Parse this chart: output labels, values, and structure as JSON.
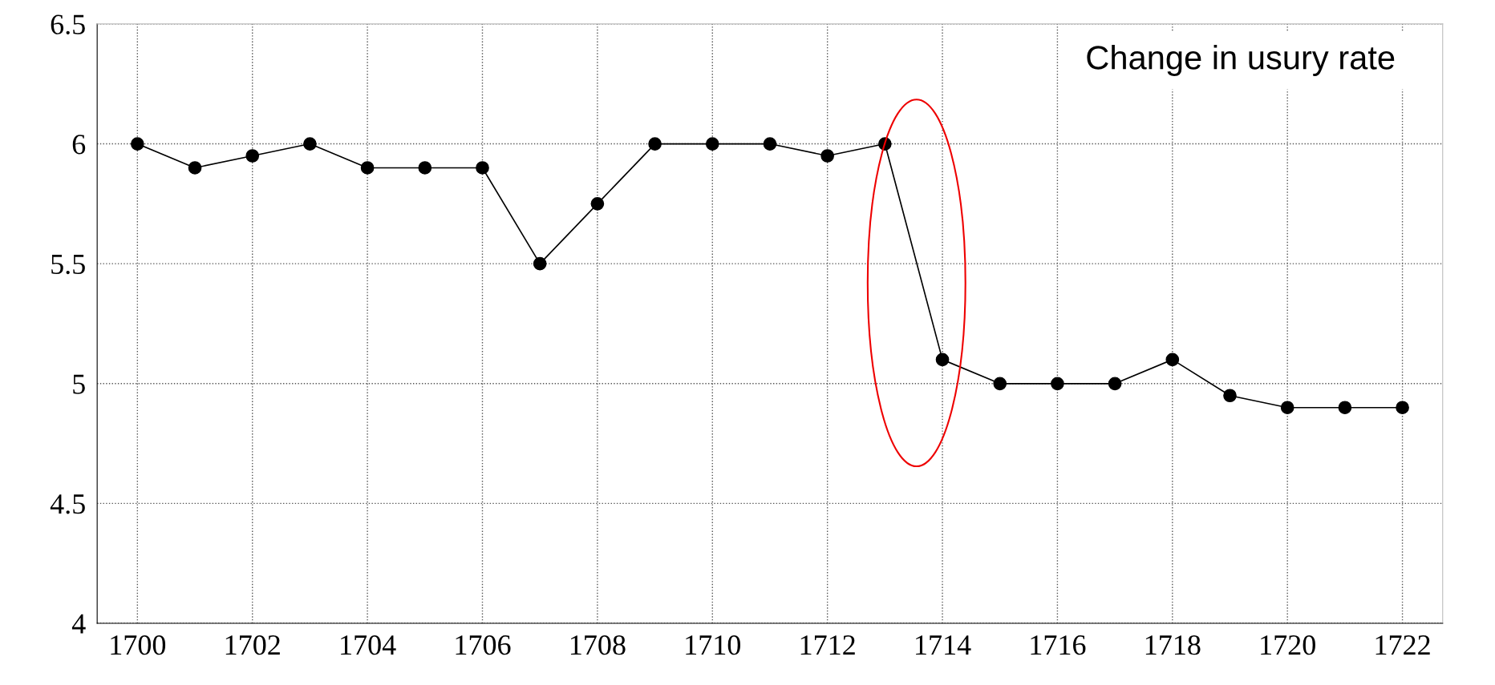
{
  "chart_data": {
    "type": "line",
    "x": [
      1700,
      1701,
      1702,
      1703,
      1704,
      1705,
      1706,
      1707,
      1708,
      1709,
      1710,
      1711,
      1712,
      1713,
      1714,
      1715,
      1716,
      1717,
      1718,
      1719,
      1720,
      1721,
      1722
    ],
    "series": [
      {
        "color": "#000000",
        "values": [
          6.0,
          5.9,
          5.95,
          6.0,
          5.9,
          5.9,
          5.9,
          5.5,
          5.75,
          6.0,
          6.0,
          6.0,
          5.95,
          6.0,
          5.1,
          5.0,
          5.0,
          5.0,
          5.1,
          4.95,
          4.9,
          4.9,
          4.9
        ]
      }
    ],
    "xlim": [
      1699.3,
      1722.7
    ],
    "xticks": [
      1700,
      1702,
      1704,
      1706,
      1708,
      1710,
      1712,
      1714,
      1716,
      1718,
      1720,
      1722
    ],
    "ylim": [
      4,
      6.5
    ],
    "yticks": [
      4,
      4.5,
      5,
      5.5,
      6,
      6.5
    ],
    "grid": true,
    "marker": "circle",
    "line_style": "solid",
    "annotations": [
      "Change in usury rate"
    ]
  }
}
